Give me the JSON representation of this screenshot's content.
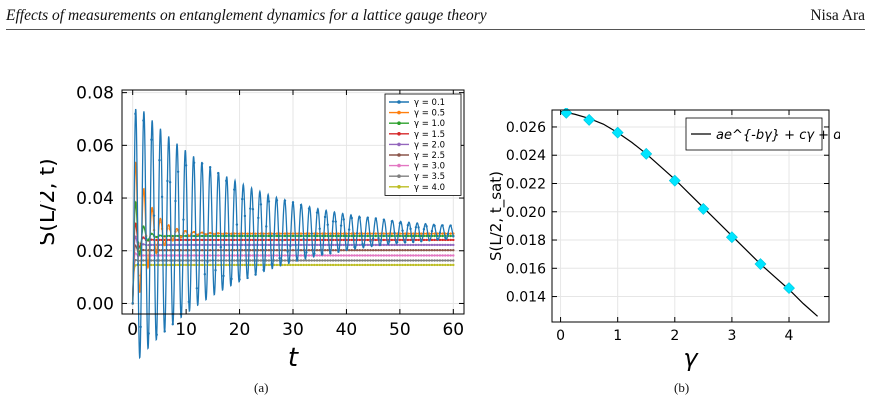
{
  "header": {
    "title": "Effects of measurements on entanglement dynamics for a lattice gauge theory",
    "author": "Nisa Ara"
  },
  "captions": {
    "a": "(a)",
    "b": "(b)"
  },
  "chart_data": [
    {
      "type": "line",
      "xlabel": "t",
      "ylabel": "S(L/2, t)",
      "xlim": [
        -2,
        62
      ],
      "ylim": [
        -0.004,
        0.081
      ],
      "xticks": [
        0,
        10,
        20,
        30,
        40,
        50,
        60
      ],
      "yticks": [
        0.0,
        0.02,
        0.04,
        0.06,
        0.08
      ],
      "ytick_labels": [
        "0.00",
        "0.02",
        "0.04",
        "0.06",
        "0.08"
      ],
      "grid": true,
      "legend_position": "top-right",
      "series": [
        {
          "name": "γ = 0.1",
          "color": "#1f77b4",
          "saturation": 0.027,
          "peak": 0.078,
          "decay": 0.05,
          "period": 1.55
        },
        {
          "name": "γ = 0.5",
          "color": "#ff7f0e",
          "saturation": 0.0265,
          "peak": 0.062,
          "decay": 0.35,
          "period": 1.55
        },
        {
          "name": "γ = 1.0",
          "color": "#2ca02c",
          "saturation": 0.0256,
          "peak": 0.049,
          "decay": 0.9,
          "period": 1.55
        },
        {
          "name": "γ = 1.5",
          "color": "#d62728",
          "saturation": 0.0241,
          "peak": 0.04,
          "decay": 1.4,
          "period": 1.55
        },
        {
          "name": "γ = 2.0",
          "color": "#9467bd",
          "saturation": 0.0222,
          "peak": 0.034,
          "decay": 1.9,
          "period": 1.55
        },
        {
          "name": "γ = 2.5",
          "color": "#8c564b",
          "saturation": 0.0202,
          "peak": 0.03,
          "decay": 2.4,
          "period": 1.55
        },
        {
          "name": "γ = 3.0",
          "color": "#e377c2",
          "saturation": 0.0182,
          "peak": 0.026,
          "decay": 2.9,
          "period": 1.55
        },
        {
          "name": "γ = 3.5",
          "color": "#7f7f7f",
          "saturation": 0.0163,
          "peak": 0.022,
          "decay": 3.4,
          "period": 1.55
        },
        {
          "name": "γ = 4.0",
          "color": "#bcbd22",
          "saturation": 0.0146,
          "peak": 0.019,
          "decay": 3.9,
          "period": 1.55
        }
      ]
    },
    {
      "type": "scatter",
      "xlabel": "γ",
      "ylabel": "S(L/2, t_sat)",
      "xlim": [
        -0.15,
        4.7
      ],
      "ylim": [
        0.0122,
        0.0272
      ],
      "xticks": [
        0,
        1,
        2,
        3,
        4
      ],
      "yticks": [
        0.014,
        0.016,
        0.018,
        0.02,
        0.022,
        0.024,
        0.026
      ],
      "ytick_labels": [
        "0.014",
        "0.016",
        "0.018",
        "0.020",
        "0.022",
        "0.024",
        "0.026"
      ],
      "grid": true,
      "legend_position": "top-right",
      "legend": "ae^{-bγ} + cγ + d",
      "points": {
        "color": "#00e5ff",
        "x": [
          0.1,
          0.5,
          1.0,
          1.5,
          2.0,
          2.5,
          3.0,
          3.5,
          4.0
        ],
        "y": [
          0.027,
          0.0265,
          0.0256,
          0.0241,
          0.0222,
          0.0202,
          0.0182,
          0.0163,
          0.0146
        ]
      },
      "fit_curve": {
        "color": "#000000",
        "x": [
          0.0,
          0.25,
          0.5,
          0.75,
          1.0,
          1.25,
          1.5,
          1.75,
          2.0,
          2.25,
          2.5,
          2.75,
          3.0,
          3.25,
          3.5,
          3.75,
          4.0,
          4.25,
          4.5
        ],
        "y": [
          0.0271,
          0.0269,
          0.0266,
          0.0262,
          0.0256,
          0.0249,
          0.0241,
          0.0232,
          0.0223,
          0.0213,
          0.0203,
          0.0193,
          0.0183,
          0.0173,
          0.0163,
          0.0154,
          0.0145,
          0.0135,
          0.0126
        ]
      }
    }
  ]
}
